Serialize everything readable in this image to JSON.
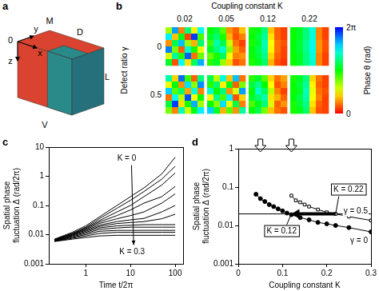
{
  "chart_data": [
    {
      "panel": "a",
      "type": "diagram",
      "origin": "0",
      "axes": [
        "x",
        "y",
        "z"
      ],
      "faces": [
        "D",
        "M",
        "L",
        "V"
      ]
    },
    {
      "panel": "b",
      "type": "heatmap",
      "title": "Coupling constant K",
      "columns": [
        0.02,
        0.05,
        0.12,
        0.22
      ],
      "row_label": "Defect ratio γ",
      "rows": [
        0,
        0.5
      ],
      "cells": [
        [
          [
            [
              2.1,
              5.3,
              0.8,
              3.9,
              1.5,
              4.6
            ],
            [
              4.8,
              1.2,
              3.3,
              0.4,
              5.9,
              2.7
            ],
            [
              0.9,
              3.6,
              5.1,
              2.2,
              1.1,
              3.8
            ],
            [
              5.5,
              2.4,
              0.6,
              4.4,
              3.0,
              1.7
            ],
            [
              1.8,
              4.1,
              2.9,
              5.7,
              0.7,
              2.5
            ],
            [
              3.4,
              0.5,
              4.7,
              1.4,
              3.7,
              5.2
            ]
          ],
          [
            [
              3.1,
              3.5,
              2.6,
              0.9,
              0.6,
              1.2
            ],
            [
              3.4,
              3.8,
              3.0,
              1.1,
              0.5,
              0.8
            ],
            [
              2.8,
              4.2,
              3.6,
              1.9,
              0.7,
              0.4
            ],
            [
              3.3,
              3.9,
              4.4,
              2.3,
              1.0,
              0.6
            ],
            [
              2.5,
              3.0,
              3.7,
              1.6,
              0.8,
              0.9
            ],
            [
              2.9,
              3.4,
              2.2,
              1.3,
              0.5,
              0.7
            ]
          ],
          [
            [
              3.0,
              3.3,
              3.9,
              1.2,
              0.6,
              0.4
            ],
            [
              3.1,
              3.5,
              4.1,
              1.4,
              0.6,
              0.4
            ],
            [
              3.0,
              3.4,
              4.3,
              1.6,
              0.7,
              0.5
            ],
            [
              3.2,
              3.6,
              4.2,
              1.5,
              0.7,
              0.4
            ],
            [
              3.1,
              3.5,
              4.0,
              1.3,
              0.6,
              0.4
            ],
            [
              3.0,
              3.3,
              3.8,
              1.1,
              0.5,
              0.3
            ]
          ],
          [
            [
              3.1,
              3.4,
              3.9,
              4.5,
              0.8,
              0.4
            ],
            [
              3.1,
              3.4,
              3.9,
              4.5,
              0.8,
              0.4
            ],
            [
              3.2,
              3.5,
              4.0,
              4.6,
              0.9,
              0.5
            ],
            [
              3.2,
              3.5,
              4.0,
              4.6,
              0.9,
              0.5
            ],
            [
              3.1,
              3.4,
              3.9,
              4.5,
              0.8,
              0.4
            ],
            [
              3.1,
              3.4,
              3.9,
              4.4,
              0.8,
              0.4
            ]
          ]
        ],
        [
          [
            [
              4.2,
              1.3,
              5.6,
              2.8,
              0.6,
              3.9
            ],
            [
              1.7,
              3.2,
              0.9,
              4.9,
              2.3,
              5.4
            ],
            [
              5.0,
              2.6,
              3.8,
              1.0,
              4.5,
              0.8
            ],
            [
              0.7,
              4.6,
              2.0,
              5.8,
              1.6,
              3.1
            ],
            [
              3.5,
              5.9,
              1.4,
              3.0,
              5.2,
              2.1
            ],
            [
              2.4,
              0.8,
              4.3,
              1.9,
              3.3,
              4.8
            ]
          ],
          [
            [
              3.6,
              2.0,
              4.5,
              1.2,
              5.1,
              0.7
            ],
            [
              2.9,
              3.8,
              1.5,
              3.3,
              0.6,
              2.4
            ],
            [
              4.4,
              3.1,
              3.9,
              0.9,
              1.8,
              5.3
            ],
            [
              1.6,
              4.0,
              2.7,
              4.8,
              0.5,
              1.3
            ],
            [
              3.2,
              2.3,
              4.9,
              1.7,
              3.6,
              0.8
            ],
            [
              5.0,
              3.4,
              1.1,
              2.6,
              0.9,
              4.1
            ]
          ],
          [
            [
              2.9,
              3.4,
              2.6,
              1.3,
              0.7,
              1.0
            ],
            [
              3.5,
              4.0,
              3.2,
              1.6,
              0.5,
              0.8
            ],
            [
              3.1,
              4.4,
              3.7,
              2.0,
              0.8,
              0.4
            ],
            [
              3.4,
              3.8,
              4.2,
              1.4,
              1.1,
              0.6
            ],
            [
              2.7,
              3.3,
              3.9,
              1.8,
              0.6,
              0.9
            ],
            [
              3.2,
              3.6,
              2.4,
              1.2,
              0.7,
              0.5
            ]
          ],
          [
            [
              3.0,
              3.4,
              3.9,
              1.3,
              0.7,
              0.4
            ],
            [
              3.1,
              3.5,
              4.1,
              1.5,
              0.6,
              0.4
            ],
            [
              3.1,
              3.4,
              4.3,
              1.7,
              0.7,
              0.5
            ],
            [
              3.2,
              3.6,
              4.2,
              1.6,
              0.8,
              0.4
            ],
            [
              3.0,
              3.5,
              4.0,
              1.4,
              0.6,
              0.4
            ],
            [
              3.0,
              3.3,
              3.8,
              1.2,
              0.5,
              0.4
            ]
          ]
        ]
      ],
      "colorbar": {
        "label": "Phase θ (rad)",
        "range": [
          0,
          6.283
        ],
        "ticks": [
          0,
          {
            "value": 6.283,
            "label": "2π"
          }
        ]
      }
    },
    {
      "panel": "c",
      "type": "line",
      "x": [
        0.2,
        0.5,
        1,
        2,
        5,
        10,
        20,
        50,
        100
      ],
      "series": [
        {
          "values": [
            0.007,
            0.012,
            0.02,
            0.04,
            0.1,
            0.2,
            0.4,
            1.2,
            4.5
          ]
        },
        {
          "values": [
            0.0068,
            0.011,
            0.018,
            0.035,
            0.08,
            0.15,
            0.3,
            0.8,
            2.2
          ]
        },
        {
          "values": [
            0.0066,
            0.011,
            0.017,
            0.03,
            0.06,
            0.1,
            0.2,
            0.5,
            1.3
          ]
        },
        {
          "values": [
            0.0065,
            0.0105,
            0.016,
            0.027,
            0.045,
            0.07,
            0.12,
            0.2,
            0.45
          ]
        },
        {
          "values": [
            0.0064,
            0.01,
            0.015,
            0.024,
            0.035,
            0.045,
            0.06,
            0.12,
            0.25
          ]
        },
        {
          "values": [
            0.0063,
            0.01,
            0.014,
            0.021,
            0.028,
            0.032,
            0.036,
            0.06,
            0.1
          ]
        },
        {
          "values": [
            0.0062,
            0.0095,
            0.013,
            0.019,
            0.024,
            0.026,
            0.028,
            0.035,
            0.05
          ]
        },
        {
          "values": [
            0.0061,
            0.009,
            0.012,
            0.017,
            0.02,
            0.021,
            0.022,
            0.022,
            0.022
          ]
        },
        {
          "values": [
            0.006,
            0.0085,
            0.011,
            0.015,
            0.017,
            0.018,
            0.018,
            0.018,
            0.018
          ]
        },
        {
          "values": [
            0.006,
            0.008,
            0.01,
            0.013,
            0.014,
            0.014,
            0.014,
            0.014,
            0.014
          ]
        },
        {
          "values": [
            0.0059,
            0.0075,
            0.009,
            0.011,
            0.012,
            0.012,
            0.012,
            0.012,
            0.012
          ]
        },
        {
          "values": [
            0.0058,
            0.007,
            0.008,
            0.009,
            0.0095,
            0.0095,
            0.0095,
            0.0095,
            0.0095
          ]
        }
      ],
      "color": "#000000",
      "xlabel": "Time t/2π",
      "ylabel": [
        "Spatial phase",
        "fluctuation Δ (rad/2π)"
      ],
      "xlim": [
        0.15,
        150
      ],
      "ylim": [
        0.001,
        10
      ],
      "xticks": [
        1,
        10,
        100
      ],
      "yticks": [
        0.001,
        0.01,
        0.1,
        1,
        10
      ],
      "log": true,
      "grid": false,
      "annotations": [
        "K = 0",
        "K = 0.3"
      ]
    },
    {
      "panel": "d",
      "type": "line",
      "series": [
        {
          "name": "γ = 0",
          "x": [
            0.04,
            0.05,
            0.06,
            0.07,
            0.08,
            0.09,
            0.1,
            0.11,
            0.12,
            0.14,
            0.16,
            0.18,
            0.2,
            0.22,
            0.25,
            0.3
          ],
          "values": [
            0.065,
            0.05,
            0.042,
            0.035,
            0.031,
            0.027,
            0.024,
            0.021,
            0.019,
            0.016,
            0.014,
            0.012,
            0.011,
            0.01,
            0.0088,
            0.0068
          ],
          "marker": "filled_circle"
        },
        {
          "name": "γ = 0.5",
          "x": [
            0.12,
            0.13,
            0.14,
            0.15,
            0.16,
            0.18,
            0.2,
            0.22,
            0.25,
            0.3
          ],
          "values": [
            0.06,
            0.045,
            0.04,
            0.035,
            0.031,
            0.026,
            0.022,
            0.02,
            0.017,
            0.0135
          ],
          "marker": "open_square"
        }
      ],
      "color": "#000000",
      "xlabel": "Coupling constant K",
      "ylabel": [
        "Spatial phase",
        "fluctuation Δ (rad/2π)"
      ],
      "xlim": [
        0,
        0.3
      ],
      "ylim": [
        0.001,
        1
      ],
      "xticks": [
        0,
        0.1,
        0.2,
        0.3
      ],
      "yticks": [
        0.001,
        0.01,
        0.1,
        1
      ],
      "log": "y",
      "grid": false,
      "threshold": 0.02,
      "marked_K": [
        0.05,
        0.12
      ],
      "shift": {
        "from": 0.22,
        "to": 0.12
      },
      "shift_labels": [
        "K = 0.22",
        "K = 0.12"
      ]
    }
  ]
}
